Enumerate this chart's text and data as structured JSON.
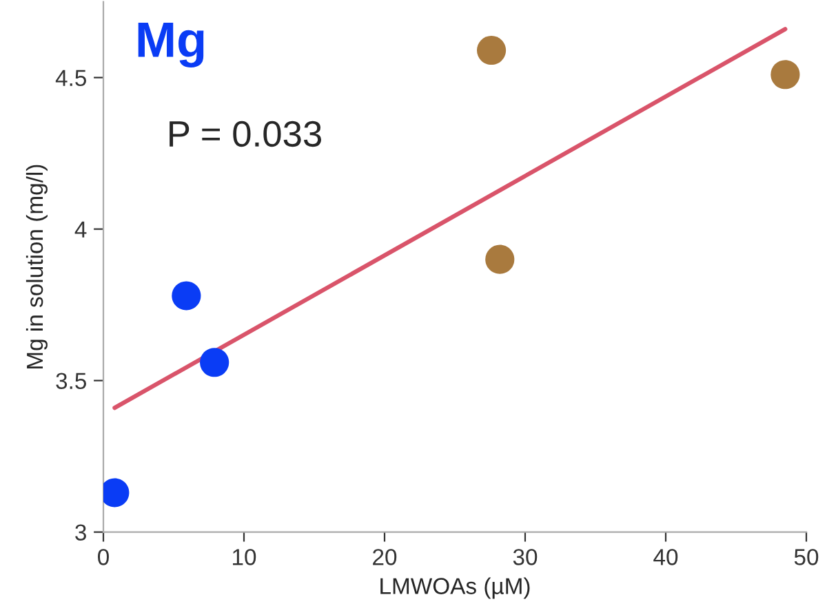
{
  "chart_data": {
    "type": "scatter",
    "title": "Mg",
    "xlabel": "LMWOAs (µM)",
    "ylabel": "Mg in solution (mg/l)",
    "annotations": [
      "P = 0.033"
    ],
    "series": [
      {
        "color": "#0a3cf5",
        "x": [
          0.8,
          5.9,
          7.9
        ],
        "values": [
          3.13,
          3.78,
          3.56
        ]
      },
      {
        "color": "#a97a3e",
        "x": [
          27.6,
          28.2,
          48.5
        ],
        "values": [
          4.59,
          3.9,
          4.51
        ]
      },
      {
        "type": "line",
        "color": "#d9546a",
        "x": [
          0.8,
          48.5
        ],
        "values": [
          3.41,
          4.66
        ]
      }
    ],
    "xlim": [
      0,
      50
    ],
    "ylim": [
      3,
      4.75
    ],
    "xticks": [
      0,
      10,
      20,
      30,
      40,
      50
    ],
    "yticks": [
      3,
      3.5,
      4,
      4.5
    ],
    "grid": false,
    "legend": false
  }
}
